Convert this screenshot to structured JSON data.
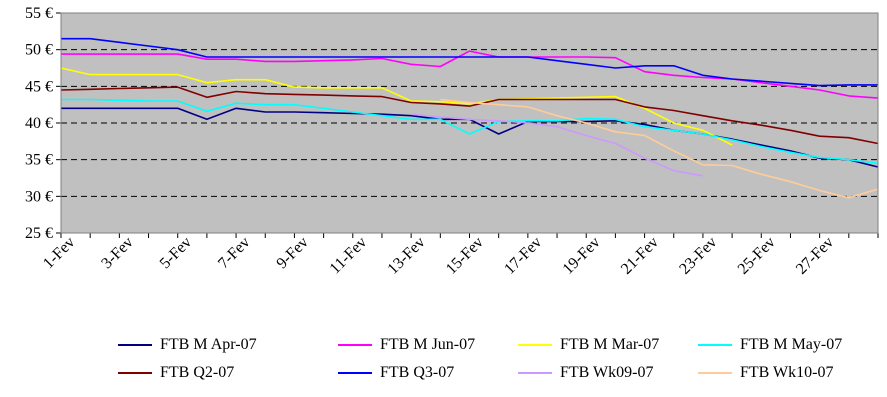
{
  "chart_data": {
    "type": "line",
    "title": "",
    "xlabel": "",
    "ylabel": "",
    "ylim": [
      25,
      55
    ],
    "yticks": [
      25,
      30,
      35,
      40,
      45,
      50,
      55
    ],
    "ytick_labels": [
      "25 €",
      "30 €",
      "35 €",
      "40 €",
      "45 €",
      "50 €",
      "55 €"
    ],
    "x": [
      1,
      2,
      3,
      4,
      5,
      6,
      7,
      8,
      9,
      10,
      11,
      12,
      13,
      14,
      15,
      16,
      17,
      18,
      19,
      20,
      21,
      22,
      23,
      24,
      25,
      26,
      27,
      28,
      29
    ],
    "xtick_labels": [
      "1-Fev",
      "3-Fev",
      "5-Fev",
      "7-Fev",
      "9-Fev",
      "11-Fev",
      "13-Fev",
      "15-Fev",
      "17-Fev",
      "19-Fev",
      "21-Fev",
      "23-Fev",
      "25-Fev",
      "27-Fev"
    ],
    "grid": "dashed horizontal",
    "background": "#c0c0c0",
    "legend_position": "bottom",
    "series": [
      {
        "name": "FTB M Apr-07",
        "color": "#000080",
        "values": [
          42.0,
          42.0,
          42.0,
          42.0,
          42.0,
          40.5,
          42.0,
          41.5,
          41.5,
          41.4,
          41.3,
          41.2,
          41.0,
          40.5,
          40.5,
          38.5,
          40.2,
          40.2,
          40.2,
          40.3,
          39.8,
          39.0,
          38.5,
          37.8,
          37.0,
          36.2,
          35.2,
          35.0,
          34.0
        ]
      },
      {
        "name": "FTB M Jun-07",
        "color": "#ff00ff",
        "values": [
          49.4,
          49.4,
          49.4,
          49.4,
          49.4,
          48.7,
          48.7,
          48.4,
          48.4,
          48.5,
          48.6,
          48.8,
          48.0,
          47.7,
          49.8,
          49.0,
          49.0,
          49.0,
          49.0,
          48.9,
          47.0,
          46.5,
          46.2,
          46.0,
          45.5,
          45.0,
          44.5,
          43.7,
          43.4
        ]
      },
      {
        "name": "FTB M Mar-07",
        "color": "#ffff00",
        "values": [
          47.5,
          46.6,
          46.6,
          46.6,
          46.6,
          45.5,
          45.9,
          45.9,
          44.9,
          44.8,
          44.8,
          44.8,
          43.0,
          42.9,
          42.6,
          43.2,
          43.3,
          43.4,
          43.5,
          43.6,
          42.0,
          40.0,
          39.0,
          37.0,
          null,
          null,
          null,
          null,
          null
        ]
      },
      {
        "name": "FTB M May-07",
        "color": "#00ffff",
        "values": [
          43.2,
          43.2,
          43.1,
          43.0,
          43.0,
          41.6,
          42.7,
          42.5,
          42.5,
          42.0,
          41.5,
          41.0,
          40.5,
          40.5,
          38.5,
          40.2,
          40.3,
          40.3,
          40.6,
          40.5,
          39.5,
          39.0,
          38.5,
          37.7,
          36.8,
          36.0,
          35.3,
          35.0,
          34.5
        ]
      },
      {
        "name": "FTB Q2-07",
        "color": "#800000",
        "values": [
          44.5,
          44.6,
          44.7,
          44.8,
          44.9,
          43.5,
          44.3,
          44.0,
          43.9,
          43.8,
          43.7,
          43.6,
          42.8,
          42.6,
          42.3,
          43.2,
          43.2,
          43.2,
          43.2,
          43.2,
          42.2,
          41.7,
          41.0,
          40.3,
          39.7,
          39.0,
          38.2,
          38.0,
          37.2
        ]
      },
      {
        "name": "FTB Q3-07",
        "color": "#0000ff",
        "values": [
          51.5,
          51.5,
          51.0,
          50.5,
          50.0,
          49.0,
          49.0,
          49.0,
          49.0,
          49.0,
          49.0,
          49.0,
          49.0,
          49.0,
          49.0,
          49.0,
          49.0,
          48.5,
          48.0,
          47.5,
          47.8,
          47.8,
          46.5,
          46.0,
          45.7,
          45.4,
          45.1,
          45.2,
          45.2
        ]
      },
      {
        "name": "FTB Wk09-07",
        "color": "#cc99ff",
        "values": [
          null,
          null,
          null,
          null,
          null,
          null,
          null,
          null,
          null,
          null,
          null,
          null,
          41.2,
          40.8,
          40.5,
          40.3,
          40.0,
          39.5,
          38.3,
          37.2,
          35.2,
          33.5,
          32.8,
          null,
          null,
          null,
          null,
          null,
          null
        ]
      },
      {
        "name": "FTB Wk10-07",
        "color": "#ffcc99",
        "values": [
          null,
          null,
          null,
          null,
          null,
          null,
          null,
          null,
          null,
          null,
          null,
          null,
          null,
          43.2,
          42.8,
          42.5,
          42.2,
          41.0,
          40.0,
          38.8,
          38.3,
          36.2,
          34.3,
          34.2,
          33.0,
          32.0,
          30.8,
          29.8,
          31.0
        ]
      }
    ]
  }
}
